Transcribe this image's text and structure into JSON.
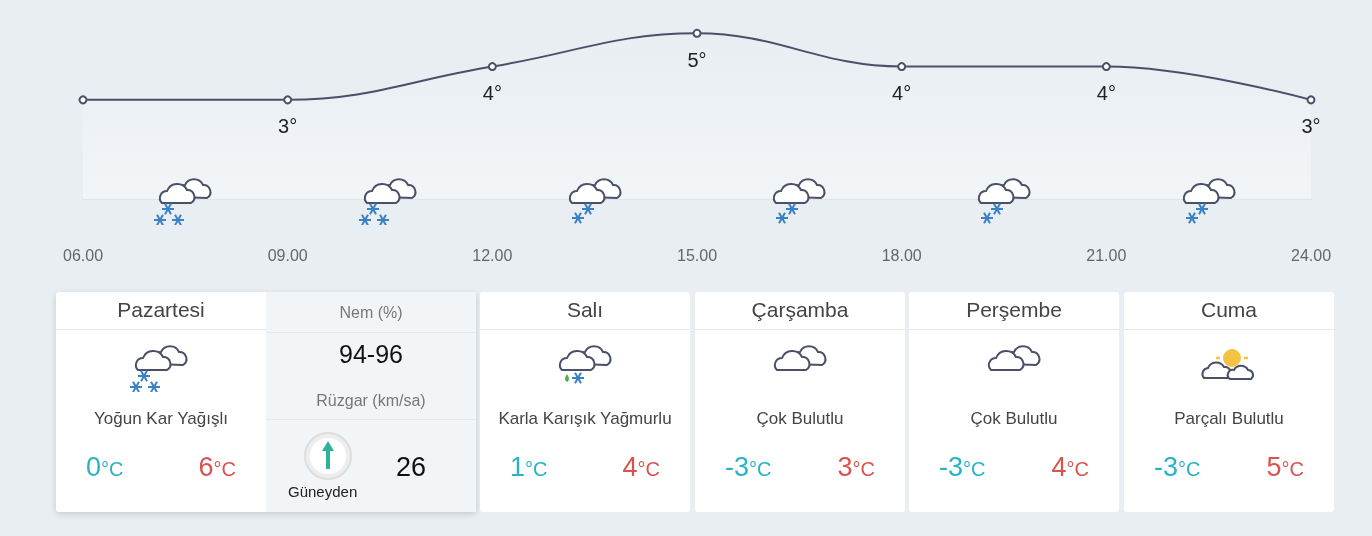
{
  "chart_data": [
    {
      "type": "area",
      "categories": [
        "06.00",
        "09.00",
        "12.00",
        "15.00",
        "18.00",
        "21.00",
        "24.00"
      ],
      "series": [
        {
          "color": "#4a5068",
          "values": [
            3,
            3,
            4,
            5,
            4,
            4,
            3
          ],
          "value_labels": [
            null,
            "3°",
            "4°",
            "5°",
            "4°",
            "4°",
            "3°"
          ]
        }
      ],
      "tick_labels": "x",
      "marker": "circle",
      "grid": false
    },
    {
      "type": "other",
      "title": "Pazartesi",
      "annotations": [
        "Yoğun Kar Yağışlı",
        "0°C",
        "6°C",
        "Nem (%)",
        "94-96",
        "Rüzgar (km/sa)",
        "Güneyden",
        "26"
      ]
    },
    {
      "type": "other",
      "title": "Salı",
      "annotations": [
        "Karla Karışık Yağmurlu",
        "1°C",
        "4°C"
      ]
    },
    {
      "type": "other",
      "title": "Çarşamba",
      "annotations": [
        "Çok Bulutlu",
        "-3°C",
        "3°C"
      ]
    },
    {
      "type": "other",
      "title": "Perşembe",
      "annotations": [
        "Çok Bulutlu",
        "-3°C",
        "4°C"
      ]
    },
    {
      "type": "other",
      "title": "Cuma",
      "annotations": [
        "Parçalı Bulutlu",
        "-3°C",
        "5°C"
      ]
    }
  ]
}
